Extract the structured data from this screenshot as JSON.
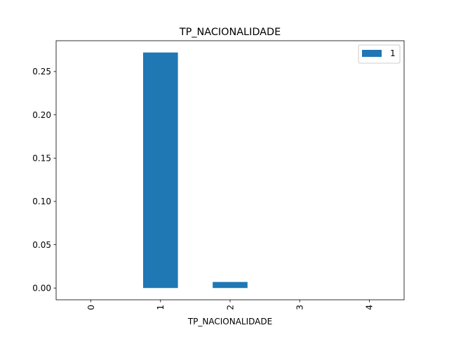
{
  "chart_data": {
    "type": "bar",
    "title": "TP_NACIONALIDADE",
    "xlabel": "TP_NACIONALIDADE",
    "ylabel": "",
    "categories": [
      "0",
      "1",
      "2",
      "3",
      "4"
    ],
    "series": [
      {
        "name": "1",
        "values": [
          0,
          0.272,
          0.007,
          0,
          0
        ],
        "color": "#1f77b4"
      }
    ],
    "ylim": [
      -0.0136,
      0.2856
    ],
    "yticks": [
      0.0,
      0.05,
      0.1,
      0.15,
      0.2,
      0.25
    ],
    "ytick_labels": [
      "0.00",
      "0.05",
      "0.10",
      "0.15",
      "0.20",
      "0.25"
    ],
    "xtick_rotation": "vertical",
    "grid": false,
    "legend": "top-right"
  }
}
